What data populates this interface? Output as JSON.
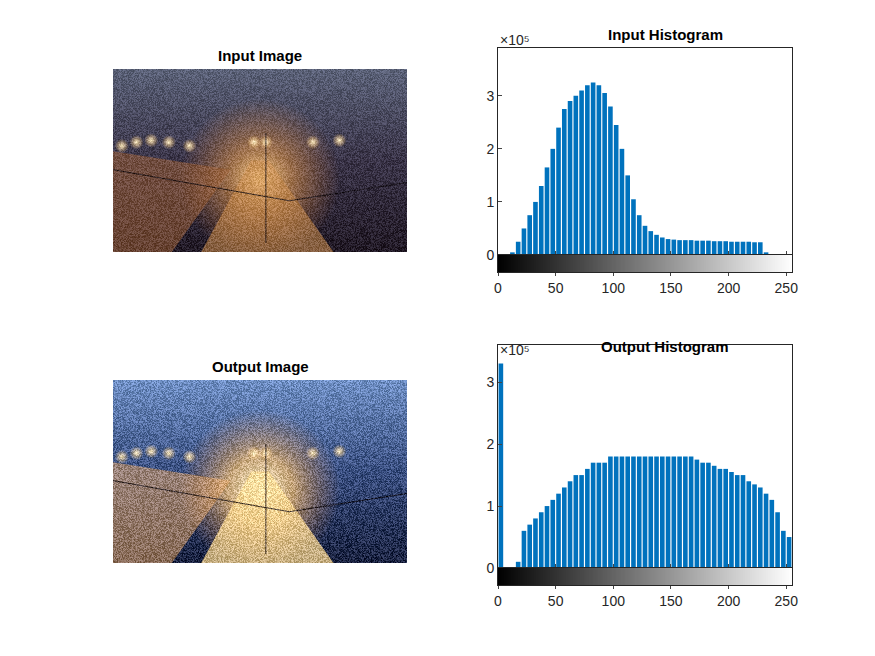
{
  "chart_data": [
    {
      "type": "image",
      "title": "Input Image"
    },
    {
      "type": "histogram",
      "title": "Input Histogram",
      "color": "#0072bd",
      "bins": [
        0,
        5,
        10,
        15,
        20,
        25,
        30,
        35,
        40,
        45,
        50,
        55,
        60,
        65,
        70,
        75,
        80,
        85,
        90,
        95,
        100,
        105,
        110,
        115,
        120,
        125,
        130,
        135,
        140,
        145,
        150,
        155,
        160,
        165,
        170,
        175,
        180,
        185,
        190,
        195,
        200,
        205,
        210,
        215,
        220,
        225,
        230,
        235,
        240,
        245,
        250,
        255
      ],
      "values": [
        0,
        0,
        0.05,
        0.25,
        0.5,
        0.75,
        1.0,
        1.3,
        1.65,
        2.0,
        2.4,
        2.75,
        2.9,
        3.0,
        3.1,
        3.2,
        3.25,
        3.2,
        3.05,
        2.8,
        2.45,
        2.0,
        1.5,
        1.05,
        0.75,
        0.55,
        0.45,
        0.38,
        0.33,
        0.3,
        0.29,
        0.28,
        0.28,
        0.28,
        0.27,
        0.27,
        0.27,
        0.26,
        0.26,
        0.26,
        0.25,
        0.25,
        0.25,
        0.25,
        0.24,
        0.24,
        0.05,
        0,
        0,
        0,
        0
      ],
      "xlim": [
        0,
        255
      ],
      "xticks": [
        0,
        50,
        100,
        150,
        200,
        250
      ],
      "ylim": [
        0,
        3.9
      ],
      "yticks": [
        0,
        1,
        2,
        3
      ],
      "annotations": [
        "×10⁵"
      ]
    },
    {
      "type": "image",
      "title": "Output Image"
    },
    {
      "type": "histogram",
      "title": "Output Histogram",
      "color": "#0072bd",
      "bins": [
        0,
        5,
        10,
        15,
        20,
        25,
        30,
        35,
        40,
        45,
        50,
        55,
        60,
        65,
        70,
        75,
        80,
        85,
        90,
        95,
        100,
        105,
        110,
        115,
        120,
        125,
        130,
        135,
        140,
        145,
        150,
        155,
        160,
        165,
        170,
        175,
        180,
        185,
        190,
        195,
        200,
        205,
        210,
        215,
        220,
        225,
        230,
        235,
        240,
        245,
        250,
        255
      ],
      "values": [
        3.3,
        0,
        0,
        0.1,
        0.6,
        0.7,
        0.8,
        0.9,
        1.0,
        1.1,
        1.2,
        1.3,
        1.4,
        1.5,
        1.5,
        1.6,
        1.7,
        1.7,
        1.7,
        1.8,
        1.8,
        1.8,
        1.8,
        1.8,
        1.8,
        1.8,
        1.8,
        1.8,
        1.8,
        1.8,
        1.8,
        1.8,
        1.8,
        1.8,
        1.75,
        1.7,
        1.7,
        1.65,
        1.6,
        1.6,
        1.55,
        1.5,
        1.5,
        1.4,
        1.35,
        1.3,
        1.2,
        1.1,
        0.9,
        0.6,
        0.5
      ],
      "xlim": [
        0,
        255
      ],
      "xticks": [
        0,
        50,
        100,
        150,
        200,
        250
      ],
      "ylim": [
        0,
        3.6
      ],
      "yticks": [
        0,
        1,
        2,
        3
      ],
      "annotations": [
        "×10⁵"
      ]
    }
  ]
}
